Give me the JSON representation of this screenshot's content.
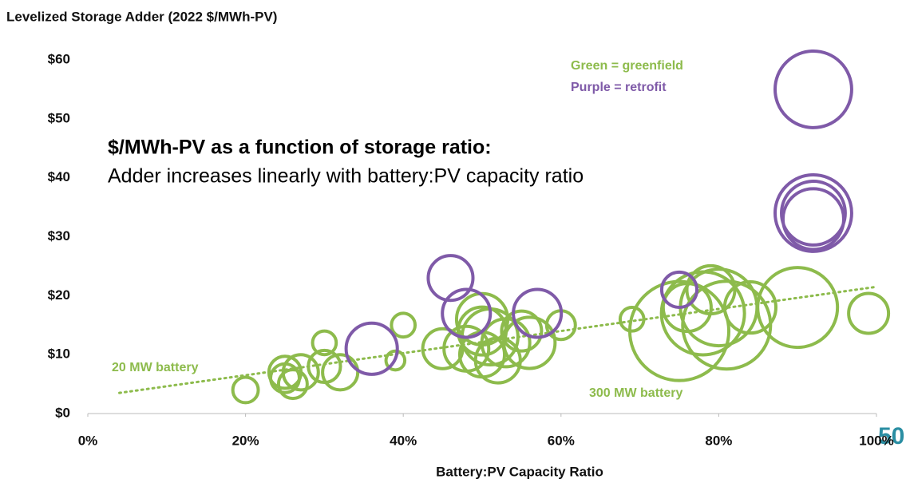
{
  "chart_data": {
    "type": "scatter",
    "title": "Levelized Storage Adder (2022 $/MWh-PV)",
    "xlabel": "Battery:PV Capacity Ratio",
    "headline": "$/MWh-PV as a function of storage ratio:",
    "subheadline": "Adder increases linearly with battery:PV capacity ratio",
    "page_number": "50",
    "annotations": [
      {
        "text": "Green = greenfield",
        "series": 0
      },
      {
        "text": "Purple = retrofit",
        "series": 1
      },
      {
        "text": "20 MW battery",
        "series": 0
      },
      {
        "text": "300 MW battery",
        "series": 0
      }
    ],
    "xlim": [
      0,
      100
    ],
    "ylim": [
      0,
      60
    ],
    "xticks": [
      {
        "value": 0,
        "label": "0%"
      },
      {
        "value": 20,
        "label": "20%"
      },
      {
        "value": 40,
        "label": "40%"
      },
      {
        "value": 60,
        "label": "60%"
      },
      {
        "value": 80,
        "label": "80%"
      },
      {
        "value": 100,
        "label": "100%"
      }
    ],
    "yticks": [
      {
        "value": 0,
        "label": "$0"
      },
      {
        "value": 10,
        "label": "$10"
      },
      {
        "value": 20,
        "label": "$20"
      },
      {
        "value": 30,
        "label": "$30"
      },
      {
        "value": 40,
        "label": "$40"
      },
      {
        "value": 50,
        "label": "$50"
      },
      {
        "value": 60,
        "label": "$60"
      }
    ],
    "trendline": {
      "color": "#8dbb4c",
      "x": [
        4,
        100
      ],
      "y": [
        3.5,
        21.5
      ]
    },
    "series": [
      {
        "name": "greenfield",
        "color": "#8dbb4c",
        "x": [
          20,
          25,
          25,
          26,
          27,
          30,
          30,
          32,
          39,
          40,
          45,
          48,
          50,
          50,
          51,
          50,
          52,
          53,
          55,
          56,
          60,
          69,
          75,
          78,
          80,
          81,
          79,
          84,
          90,
          99,
          76
        ],
        "values": [
          4,
          6,
          7,
          5,
          7,
          12,
          8,
          7,
          9,
          15,
          11,
          11,
          14,
          10,
          13,
          16,
          9,
          12,
          14,
          12,
          15,
          16,
          14,
          17,
          18,
          15,
          21,
          18,
          18,
          17,
          18
        ],
        "sizes": [
          22,
          28,
          35,
          28,
          42,
          19,
          35,
          42,
          12,
          19,
          54,
          68,
          78,
          68,
          106,
          89,
          68,
          78,
          54,
          89,
          28,
          19,
          333,
          234,
          199,
          262,
          78,
          89,
          216,
          54,
          78
        ]
      },
      {
        "name": "retrofit",
        "color": "#7f5aa8",
        "x": [
          46,
          48,
          57,
          36,
          75,
          92,
          92,
          92,
          92
        ],
        "values": [
          23,
          17,
          17,
          11,
          21,
          55,
          34,
          33,
          34
        ],
        "sizes": [
          68,
          78,
          78,
          89,
          42,
          199,
          199,
          125,
          138
        ]
      }
    ]
  }
}
